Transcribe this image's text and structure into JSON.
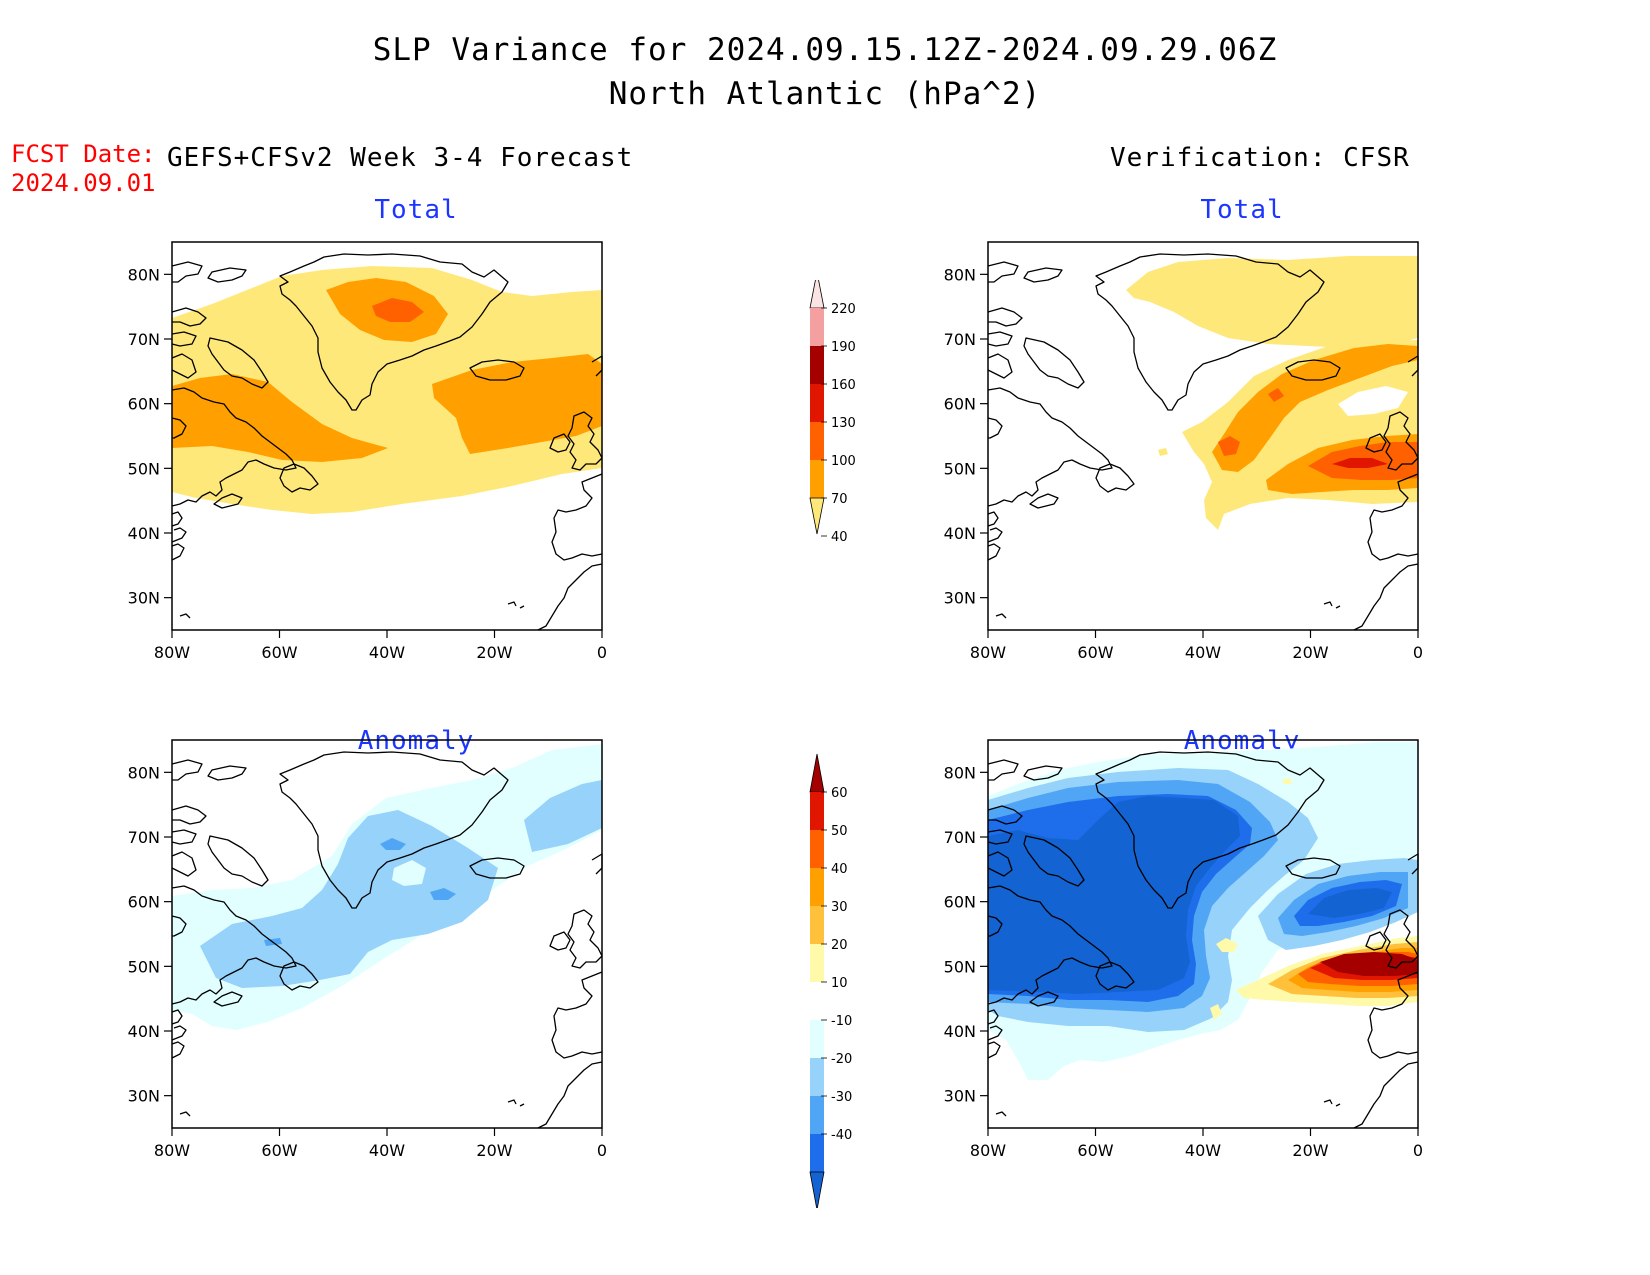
{
  "title_line1": "SLP Variance for 2024.09.15.12Z-2024.09.29.06Z",
  "title_line2": "North Atlantic (hPa^2)",
  "fcst_date_label": "FCST Date:",
  "fcst_date_value": "2024.09.01",
  "left_header": "GEFS+CFSv2 Week 3-4 Forecast",
  "right_header": "Verification: CFSR",
  "panels": {
    "fc_total": "Total",
    "vf_total": "Total",
    "fc_anom": "Anomaly",
    "vf_anom": "Anomaly"
  },
  "axes": {
    "lat_labels": [
      "80N",
      "70N",
      "60N",
      "50N",
      "40N",
      "30N"
    ],
    "lat_values": [
      80,
      70,
      60,
      50,
      40,
      30
    ],
    "lon_labels": [
      "80W",
      "60W",
      "40W",
      "20W",
      "0"
    ],
    "lon_values": [
      -80,
      -60,
      -40,
      -20,
      0
    ],
    "lat_range": [
      25,
      85
    ],
    "lon_range": [
      -80,
      0
    ]
  },
  "colorbars": {
    "total": {
      "levels": [
        "40",
        "70",
        "100",
        "130",
        "160",
        "190",
        "220"
      ],
      "colors": [
        "#ffe87a",
        "#ffa000",
        "#ff6000",
        "#e11600",
        "#a50000",
        "#f4a0a0",
        "#fbe3e3"
      ]
    },
    "anomaly": {
      "levels": [
        "-40",
        "-30",
        "-20",
        "-10",
        "10",
        "20",
        "30",
        "40",
        "50",
        "60"
      ],
      "colors": [
        "#1463d2",
        "#1e6eeb",
        "#50a5f5",
        "#96d2fa",
        "#e1ffff",
        "#ffffff",
        "#fffaaa",
        "#ffc03c",
        "#ffa000",
        "#ff6000",
        "#e11600",
        "#a50000"
      ]
    }
  },
  "fill_colors": {
    "t40": "#ffe87a",
    "t70": "#ffa000",
    "t100": "#ff6000",
    "t130": "#e11600",
    "a_m10": "#e1ffff",
    "a_m20": "#96d2fa",
    "a_m30": "#50a5f5",
    "a_m40": "#1e6eeb",
    "a_m50": "#1463d2",
    "a_p10": "#fffaaa",
    "a_p20": "#ffc03c",
    "a_p30": "#ffa000",
    "a_p40": "#ff6000",
    "a_p50": "#e11600",
    "a_p60": "#a50000"
  }
}
